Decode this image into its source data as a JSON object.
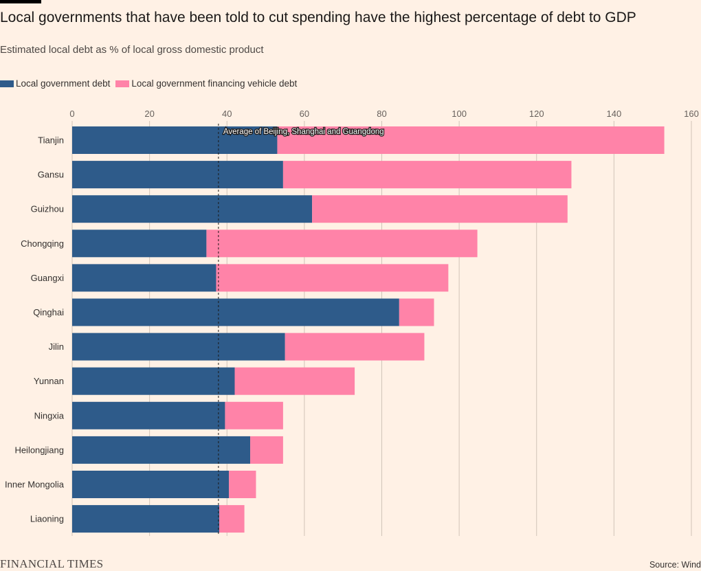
{
  "header": {
    "title": "Local governments that have been told to cut spending have the highest percentage of debt to GDP",
    "subtitle": "Estimated local debt as % of local gross domestic product"
  },
  "footer": {
    "brand": "FINANCIAL TIMES",
    "source": "Source: Wind"
  },
  "colors": {
    "local_government_debt": "#2e5b8a",
    "financing_vehicle_debt": "#ff83a8",
    "background": "#fff1e5",
    "grid": "#d0c4b8"
  },
  "chart_data": {
    "type": "bar",
    "orientation": "horizontal",
    "stacked": true,
    "title": "Local governments that have been told to cut spending have the highest percentage of debt to GDP",
    "subtitle": "Estimated local debt as % of local gross domestic product",
    "xlim": [
      0,
      160
    ],
    "ticks": [
      0,
      20,
      40,
      60,
      80,
      100,
      120,
      140,
      160
    ],
    "grid": true,
    "legend_position": "top-left",
    "categories": [
      "Tianjin",
      "Gansu",
      "Guizhou",
      "Chongqing",
      "Guangxi",
      "Qinghai",
      "Jilin",
      "Yunnan",
      "Ningxia",
      "Heilongjiang",
      "Inner Mongolia",
      "Liaoning"
    ],
    "series": [
      {
        "name": "Local government debt",
        "values": [
          53,
          54.5,
          62,
          34.7,
          37.2,
          84.5,
          55,
          42,
          39.5,
          46,
          40.5,
          38
        ]
      },
      {
        "name": "Local government financing vehicle debt",
        "values": [
          100,
          74.5,
          66,
          70,
          60,
          9,
          36,
          31,
          15,
          8.5,
          7,
          6.5
        ]
      }
    ],
    "reference_line": {
      "value": 37.8,
      "label": "Average of Beijing, Shanghai and Guangdong"
    }
  }
}
